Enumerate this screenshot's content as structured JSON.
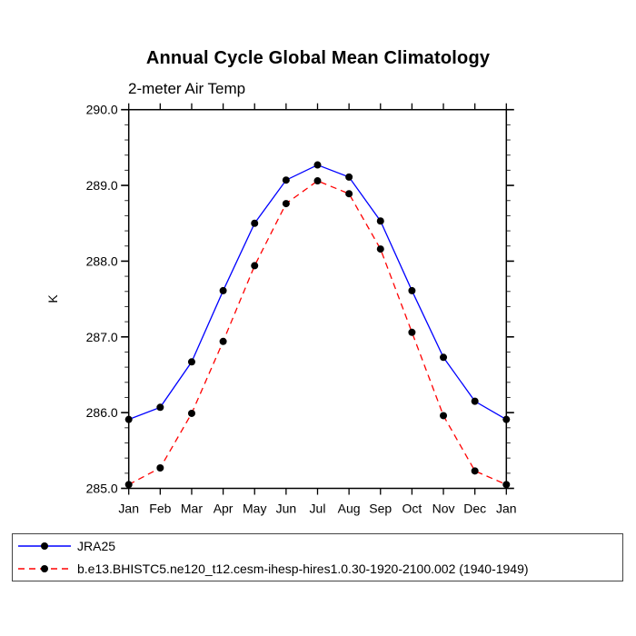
{
  "chart_data": {
    "type": "line",
    "title": "Annual Cycle Global Mean Climatology",
    "subtitle": "2-meter Air Temp",
    "ylabel": "K",
    "ylim": [
      285.0,
      290.0
    ],
    "y_major_tick_interval": 1.0,
    "y_minor_tick_interval": 0.2,
    "y_tick_labels": [
      "285.0",
      "286.0",
      "287.0",
      "288.0",
      "289.0",
      "290.0"
    ],
    "grid": "off",
    "legend_position": "bottom",
    "categories": [
      "Jan",
      "Feb",
      "Mar",
      "Apr",
      "May",
      "Jun",
      "Jul",
      "Aug",
      "Sep",
      "Oct",
      "Nov",
      "Dec",
      "Jan"
    ],
    "series": [
      {
        "name": "JRA25",
        "color": "#0000ff",
        "line_style": "solid",
        "marker": "filled-black-circle",
        "values": [
          285.91,
          286.07,
          286.67,
          287.61,
          288.5,
          289.07,
          289.27,
          289.11,
          288.53,
          287.61,
          286.73,
          286.15,
          285.91
        ]
      },
      {
        "name": "b.e13.BHISTC5.ne120_t12.cesm-ihesp-hires1.0.30-1920-2100.002 (1940-1949)",
        "color": "#ff0000",
        "line_style": "dashed",
        "marker": "filled-black-circle",
        "values": [
          285.05,
          285.27,
          285.99,
          286.94,
          287.94,
          288.76,
          289.06,
          288.89,
          288.16,
          287.06,
          285.96,
          285.23,
          285.05
        ]
      }
    ],
    "marker_color": "#000000",
    "axis_color": "#000000"
  }
}
